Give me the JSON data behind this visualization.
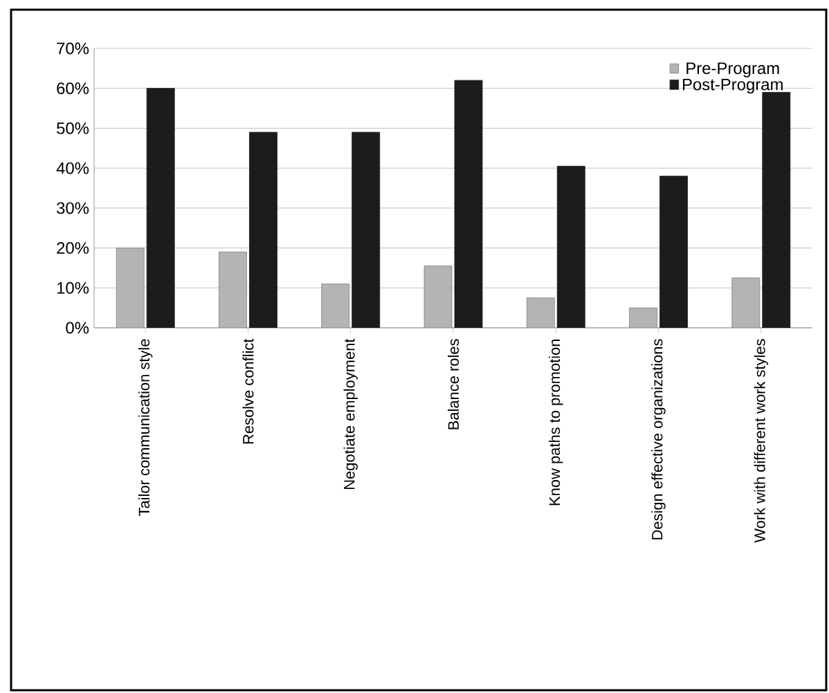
{
  "chart_data": {
    "type": "bar",
    "categories": [
      "Tailor communication style",
      "Resolve conflict",
      "Negotiate employment",
      "Balance roles",
      "Know paths to promotion",
      "Design effective organizations",
      "Work with different work styles"
    ],
    "series": [
      {
        "name": "Pre-Program",
        "color": "#b4b4b4",
        "values": [
          20,
          19,
          11,
          15.5,
          7.5,
          5,
          12.5
        ]
      },
      {
        "name": "Post-Program",
        "color": "#1c1c1c",
        "values": [
          60,
          49,
          49,
          62,
          40.5,
          38,
          59
        ]
      }
    ],
    "ylim": [
      0,
      70
    ],
    "yticks": [
      {
        "value": 0,
        "label": "0%"
      },
      {
        "value": 10,
        "label": "10%"
      },
      {
        "value": 20,
        "label": "20%"
      },
      {
        "value": 30,
        "label": "30%"
      },
      {
        "value": 40,
        "label": "40%"
      },
      {
        "value": 50,
        "label": "50%"
      },
      {
        "value": 60,
        "label": "60%"
      },
      {
        "value": 70,
        "label": "70%"
      }
    ],
    "grid": "y",
    "legend": "top right"
  }
}
